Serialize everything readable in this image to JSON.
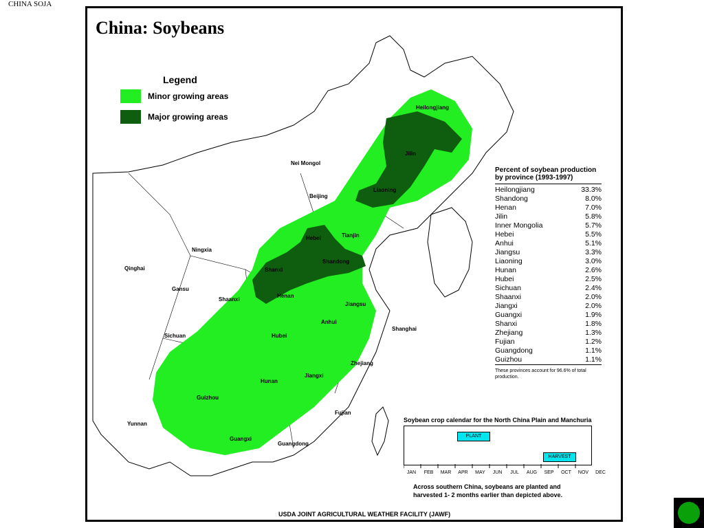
{
  "slide": {
    "corner_title": "CHINA SOJA"
  },
  "map": {
    "title": "China:  Soybeans",
    "legend": {
      "title": "Legend",
      "minor_label": "Minor growing areas",
      "major_label": "Major growing areas",
      "minor_color": "#22ee22",
      "major_color": "#0f5e0f"
    },
    "labels": {
      "heilongjiang": "Heilongjiang",
      "jilin": "Jilin",
      "liaoning": "Liaoning",
      "nei_mongol": "Nei Mongol",
      "beijing": "Beijing",
      "tianjin": "Tianjin",
      "hebei": "Hebei",
      "shanxi": "Shanxi",
      "shandong": "Shandong",
      "ningxia": "Ningxia",
      "qinghai": "Qinghai",
      "gansu": "Gansu",
      "shaanxi": "Shaanxi",
      "henan": "Henan",
      "jiangsu": "Jiangsu",
      "anhui": "Anhui",
      "shanghai": "Shanghai",
      "sichuan": "Sichuan",
      "hubei": "Hubei",
      "zhejiang": "Zhejiang",
      "hunan": "Hunan",
      "jiangxi": "Jiangxi",
      "guizhou": "Guizhou",
      "yunnan": "Yunnan",
      "fujian": "Fujian",
      "guangxi": "Guangxi",
      "guangdong": "Guangdong"
    },
    "stats": {
      "title": "Percent of soybean production by province (1993-1997)",
      "rows": [
        {
          "province": "Heilongjiang",
          "pct": "33.3%"
        },
        {
          "province": "Shandong",
          "pct": "8.0%"
        },
        {
          "province": "Henan",
          "pct": "7.0%"
        },
        {
          "province": "Jilin",
          "pct": "5.8%"
        },
        {
          "province": "Inner Mongolia",
          "pct": "5.7%"
        },
        {
          "province": "Hebei",
          "pct": "5.5%"
        },
        {
          "province": "Anhui",
          "pct": "5.1%"
        },
        {
          "province": "Jiangsu",
          "pct": "3.3%"
        },
        {
          "province": "Liaoning",
          "pct": "3.0%"
        },
        {
          "province": "Hunan",
          "pct": "2.6%"
        },
        {
          "province": "Hubei",
          "pct": "2.5%"
        },
        {
          "province": "Sichuan",
          "pct": "2.4%"
        },
        {
          "province": "Shaanxi",
          "pct": "2.0%"
        },
        {
          "province": "Jiangxi",
          "pct": "2.0%"
        },
        {
          "province": "Guangxi",
          "pct": "1.9%"
        },
        {
          "province": "Shanxi",
          "pct": "1.8%"
        },
        {
          "province": "Zhejiang",
          "pct": "1.3%"
        },
        {
          "province": "Fujian",
          "pct": "1.2%"
        },
        {
          "province": "Guangdong",
          "pct": "1.1%"
        },
        {
          "province": "Guizhou",
          "pct": "1.1%"
        }
      ],
      "note": "These provinces account for 96.6% of total production."
    },
    "calendar": {
      "title": "Soybean crop calendar for the North China Plain and Manchuria",
      "months": [
        "JAN",
        "FEB",
        "MAR",
        "APR",
        "MAY",
        "JUN",
        "JUL",
        "AUG",
        "SEP",
        "OCT",
        "NOV",
        "DEC"
      ],
      "plant_label": "PLANT",
      "harvest_label": "HARVEST",
      "plant": {
        "start_month": 3,
        "end_month": 5
      },
      "harvest": {
        "start_month": 8,
        "end_month": 10
      },
      "note_line1": "Across southern China, soybeans are planted and",
      "note_line2": "harvested 1- 2 months earlier than depicted above.",
      "bar_color": "#00e5ee"
    },
    "footer": "USDA JOINT AGRICULTURAL WEATHER FACILITY (JAWF)"
  },
  "nav": {
    "button_color": "#0aa00a"
  }
}
